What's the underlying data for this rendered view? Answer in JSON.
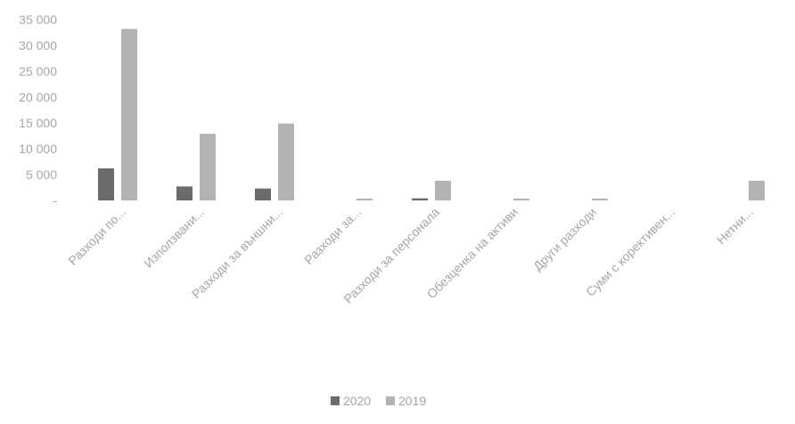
{
  "chart_data": {
    "type": "bar",
    "categories": [
      "Разходи по...",
      "Използвани...",
      "Разходи за външни...",
      "Разходи за...",
      "Разходи за персонала",
      "Обезценка на активи",
      "Други разходи",
      "Суми с корективен...",
      "Нетни..."
    ],
    "series": [
      {
        "name": "2020",
        "values": [
          6200,
          2700,
          2300,
          0,
          400,
          0,
          0,
          0,
          0
        ],
        "color": "#6b6b6b"
      },
      {
        "name": "2019",
        "values": [
          33200,
          12900,
          14900,
          300,
          3800,
          100,
          150,
          0,
          3800
        ],
        "color": "#b3b3b3"
      }
    ],
    "ylim": [
      0,
      35000
    ],
    "y_ticks": [
      "35 000",
      "30 000",
      "25 000",
      "20 000",
      "15 000",
      "10 000",
      "5 000",
      "-"
    ],
    "y_tick_values": [
      35000,
      30000,
      25000,
      20000,
      15000,
      10000,
      5000,
      0
    ],
    "grid": false,
    "legend_position": "bottom",
    "title": "",
    "xlabel": "",
    "ylabel": ""
  }
}
